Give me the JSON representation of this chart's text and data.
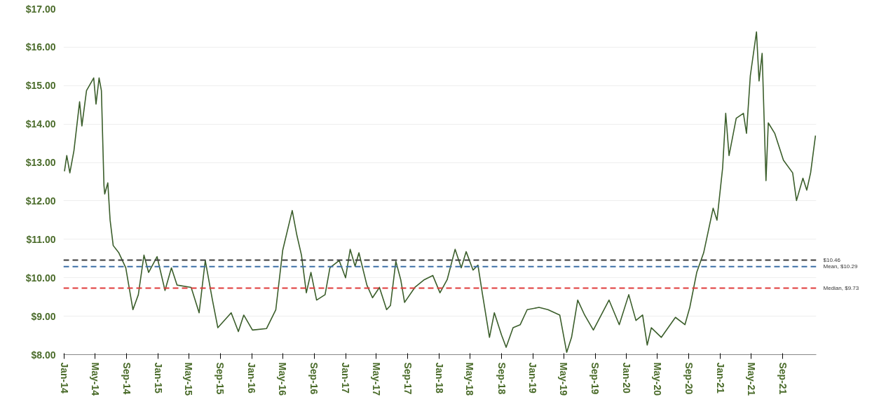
{
  "chart_data": {
    "type": "line",
    "grid": "y",
    "line_style": "solid",
    "marker": "none",
    "xlim": [
      "2013-12-28",
      "2022-01-10"
    ],
    "xticks": [
      {
        "value": "2014-01-01",
        "label": "Jan-14"
      },
      {
        "value": "2014-05-01",
        "label": "May-14"
      },
      {
        "value": "2014-09-01",
        "label": "Sep-14"
      },
      {
        "value": "2015-01-01",
        "label": "Jan-15"
      },
      {
        "value": "2015-05-01",
        "label": "May-15"
      },
      {
        "value": "2015-09-01",
        "label": "Sep-15"
      },
      {
        "value": "2016-01-01",
        "label": "Jan-16"
      },
      {
        "value": "2016-05-01",
        "label": "May-16"
      },
      {
        "value": "2016-09-01",
        "label": "Sep-16"
      },
      {
        "value": "2017-01-01",
        "label": "Jan-17"
      },
      {
        "value": "2017-05-01",
        "label": "May-17"
      },
      {
        "value": "2017-09-01",
        "label": "Sep-17"
      },
      {
        "value": "2018-01-01",
        "label": "Jan-18"
      },
      {
        "value": "2018-05-01",
        "label": "May-18"
      },
      {
        "value": "2018-09-01",
        "label": "Sep-18"
      },
      {
        "value": "2019-01-01",
        "label": "Jan-19"
      },
      {
        "value": "2019-05-01",
        "label": "May-19"
      },
      {
        "value": "2019-09-01",
        "label": "Sep-19"
      },
      {
        "value": "2020-01-01",
        "label": "Jan-20"
      },
      {
        "value": "2020-05-01",
        "label": "May-20"
      },
      {
        "value": "2020-09-01",
        "label": "Sep-20"
      },
      {
        "value": "2021-01-01",
        "label": "Jan-21"
      },
      {
        "value": "2021-05-01",
        "label": "May-21"
      },
      {
        "value": "2021-09-01",
        "label": "Sep-21"
      }
    ],
    "ylim": [
      8,
      17
    ],
    "yticks": [
      {
        "value": 8,
        "label": "$8.00"
      },
      {
        "value": 9,
        "label": "$9.00"
      },
      {
        "value": 10,
        "label": "$10.00"
      },
      {
        "value": 11,
        "label": "$11.00"
      },
      {
        "value": 12,
        "label": "$12.00"
      },
      {
        "value": 13,
        "label": "$13.00"
      },
      {
        "value": 14,
        "label": "$14.00"
      },
      {
        "value": 15,
        "label": "$15.00"
      },
      {
        "value": 16,
        "label": "$16.00"
      },
      {
        "value": 17,
        "label": "$17.00"
      }
    ],
    "ref_lines": [
      {
        "axis": "y",
        "value": 10.46,
        "label": "$10.46",
        "color": "#3a3a3a",
        "line_style": "dashed"
      },
      {
        "axis": "y",
        "value": 10.29,
        "label": "Mean, $10.29",
        "color": "#3d6fa6",
        "line_style": "dashed"
      },
      {
        "axis": "y",
        "value": 9.73,
        "label": "Median, $9.73",
        "color": "#e03a3a",
        "line_style": "dashed"
      }
    ],
    "x": [
      "2014-01-01",
      "2014-01-10",
      "2014-01-22",
      "2014-02-07",
      "2014-03-01",
      "2014-03-10",
      "2014-03-28",
      "2014-04-25",
      "2014-05-04",
      "2014-05-16",
      "2014-05-25",
      "2014-06-04",
      "2014-06-07",
      "2014-06-19",
      "2014-06-28",
      "2014-07-10",
      "2014-08-01",
      "2014-08-28",
      "2014-09-25",
      "2014-10-16",
      "2014-11-07",
      "2014-11-25",
      "2014-12-28",
      "2015-01-28",
      "2015-02-22",
      "2015-03-16",
      "2015-05-10",
      "2015-06-10",
      "2015-07-04",
      "2015-08-01",
      "2015-08-22",
      "2015-10-13",
      "2015-11-10",
      "2015-12-01",
      "2016-01-04",
      "2016-02-28",
      "2016-04-04",
      "2016-05-01",
      "2016-06-07",
      "2016-06-25",
      "2016-07-13",
      "2016-08-01",
      "2016-08-19",
      "2016-09-10",
      "2016-10-13",
      "2016-11-01",
      "2016-12-07",
      "2017-01-01",
      "2017-01-19",
      "2017-02-07",
      "2017-02-22",
      "2017-03-25",
      "2017-04-16",
      "2017-05-13",
      "2017-06-10",
      "2017-06-25",
      "2017-07-16",
      "2017-08-04",
      "2017-08-19",
      "2017-09-28",
      "2017-11-04",
      "2017-12-07",
      "2018-01-04",
      "2018-02-01",
      "2018-03-04",
      "2018-03-28",
      "2018-04-16",
      "2018-05-13",
      "2018-06-01",
      "2018-06-19",
      "2018-07-16",
      "2018-08-04",
      "2018-09-01",
      "2018-09-19",
      "2018-10-16",
      "2018-11-13",
      "2018-12-10",
      "2019-01-25",
      "2019-03-01",
      "2019-04-16",
      "2019-05-13",
      "2019-06-01",
      "2019-06-25",
      "2019-07-22",
      "2019-08-25",
      "2019-10-25",
      "2019-12-04",
      "2020-01-10",
      "2020-02-07",
      "2020-03-04",
      "2020-03-22",
      "2020-04-07",
      "2020-05-16",
      "2020-07-10",
      "2020-08-16",
      "2020-09-04",
      "2020-10-01",
      "2020-10-28",
      "2020-12-04",
      "2020-12-19",
      "2021-01-10",
      "2021-01-22",
      "2021-02-04",
      "2021-03-04",
      "2021-04-01",
      "2021-04-13",
      "2021-04-28",
      "2021-05-22",
      "2021-06-01",
      "2021-06-13",
      "2021-06-28",
      "2021-07-07",
      "2021-08-01",
      "2021-09-04",
      "2021-10-10",
      "2021-10-25",
      "2021-11-19",
      "2021-12-04",
      "2021-12-19",
      "2022-01-07"
    ],
    "series": [
      {
        "color": "#3b5e2b",
        "values": [
          12.77,
          13.18,
          12.73,
          13.31,
          14.58,
          13.95,
          14.87,
          15.2,
          14.52,
          15.2,
          14.87,
          12.4,
          12.18,
          12.47,
          11.5,
          10.84,
          10.65,
          10.26,
          9.17,
          9.56,
          10.59,
          10.14,
          10.55,
          9.67,
          10.26,
          9.81,
          9.75,
          9.09,
          10.45,
          9.42,
          8.7,
          9.09,
          8.6,
          9.03,
          8.64,
          8.68,
          9.17,
          10.72,
          11.75,
          11.11,
          10.59,
          9.61,
          10.14,
          9.42,
          9.56,
          10.26,
          10.45,
          10.0,
          10.74,
          10.3,
          10.65,
          9.81,
          9.48,
          9.75,
          9.17,
          9.28,
          10.43,
          9.95,
          9.36,
          9.75,
          9.95,
          10.06,
          9.61,
          9.95,
          10.74,
          10.26,
          10.68,
          10.2,
          10.33,
          9.56,
          8.45,
          9.09,
          8.51,
          8.19,
          8.7,
          8.78,
          9.17,
          9.23,
          9.17,
          9.03,
          8.06,
          8.45,
          9.42,
          9.03,
          8.64,
          9.42,
          8.78,
          9.56,
          8.89,
          9.03,
          8.25,
          8.7,
          8.45,
          8.97,
          8.78,
          9.23,
          10.14,
          10.65,
          11.81,
          11.5,
          12.86,
          14.28,
          13.18,
          14.15,
          14.28,
          13.76,
          15.26,
          16.4,
          15.12,
          15.84,
          12.53,
          14.03,
          13.76,
          13.06,
          12.73,
          12.01,
          12.59,
          12.28,
          12.73,
          13.7
        ]
      }
    ]
  }
}
